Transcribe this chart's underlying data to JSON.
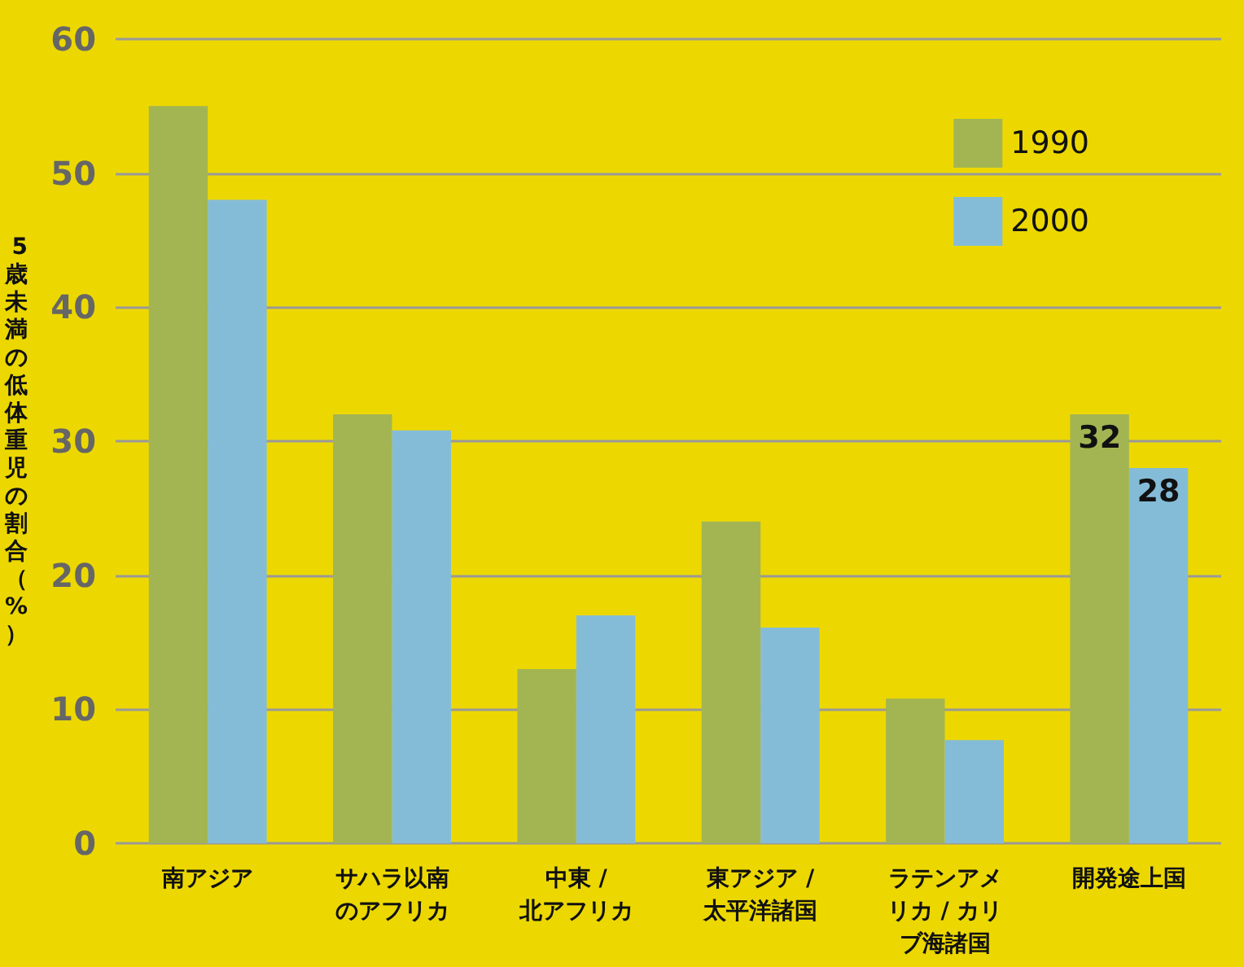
{
  "chart_data": {
    "type": "bar",
    "ylabel": "5歳未満の低体重児の割合（%）",
    "categories": [
      "南アジア",
      "サハラ以南のアフリカ",
      "中東 /\n北アフリカ",
      "東アジア /\n太平洋諸国",
      "ラテンアメリカ / カリブ海諸国",
      "開発途上国"
    ],
    "series": [
      {
        "name": "1990",
        "color": "#a3b552",
        "values": [
          55,
          32,
          13,
          24,
          10.8,
          32
        ],
        "value_labels": [
          null,
          null,
          null,
          null,
          null,
          "32"
        ]
      },
      {
        "name": "2000",
        "color": "#84bcd8",
        "values": [
          48,
          30.8,
          17,
          16.1,
          7.7,
          28
        ],
        "value_labels": [
          null,
          null,
          null,
          null,
          null,
          "28"
        ]
      }
    ],
    "ylim": [
      0,
      60
    ],
    "yticks": [
      0,
      10,
      20,
      30,
      40,
      50,
      60
    ],
    "grid": "y",
    "legend": "top right"
  }
}
